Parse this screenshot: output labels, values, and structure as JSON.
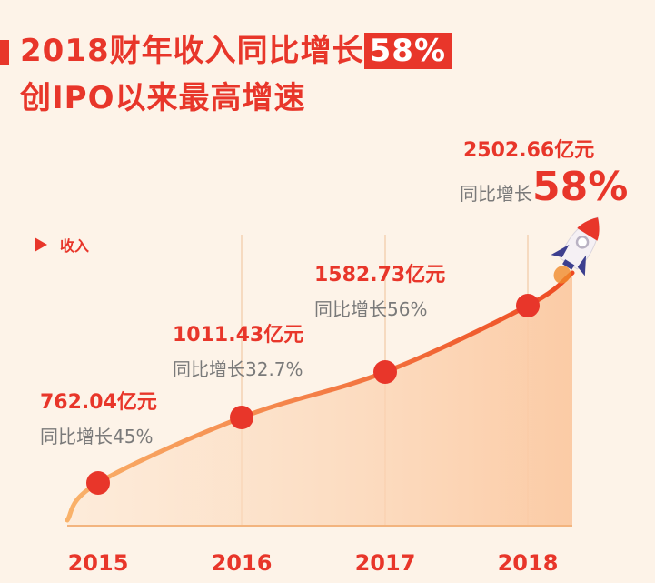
{
  "header": {
    "title_line1_main": "2018财年收入同比增长",
    "title_line1_highlight": "58%",
    "title_line2": "创IPO以来最高增速"
  },
  "chart_data": {
    "type": "area",
    "legend": "收入",
    "categories": [
      "2015",
      "2016",
      "2017",
      "2018"
    ],
    "series": [
      {
        "name": "收入",
        "values": [
          762.04,
          1011.43,
          1582.73,
          2502.66
        ],
        "value_labels": [
          "762.04亿元",
          "1011.43亿元",
          "1582.73亿元",
          "2502.66亿元"
        ],
        "growth_prefix": "同比增长",
        "growth_labels": [
          "45%",
          "32.7%",
          "56%",
          "58%"
        ]
      }
    ],
    "colors": {
      "accent": "#e8362a",
      "line": "#f07b22",
      "growth_text": "#7a7a7a",
      "axis_label": "#e8362a"
    }
  }
}
